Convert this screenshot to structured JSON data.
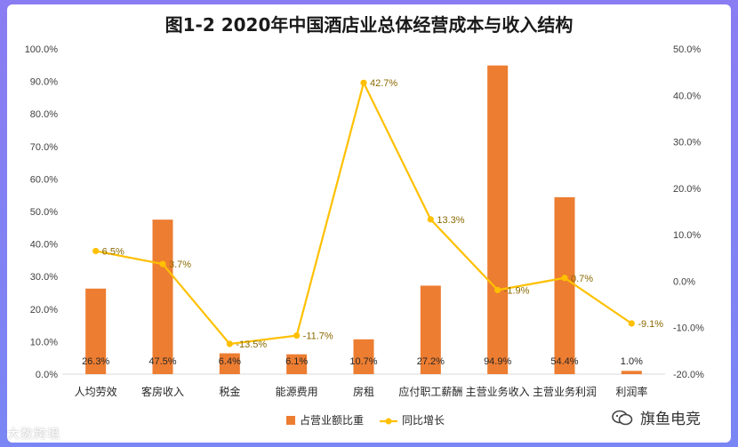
{
  "chart_data": {
    "type": "bar",
    "title": "图1-2 2020年中国酒店业总体经营成本与收入结构",
    "categories": [
      "人均劳效",
      "客房收入",
      "税金",
      "能源费用",
      "房租",
      "应付职工薪酬",
      "主营业务收入",
      "主营业务利润",
      "利润率"
    ],
    "series": [
      {
        "name": "占营业额比重",
        "type": "bar",
        "axis": "left",
        "color": "#ed7d31",
        "values": [
          26.3,
          47.5,
          6.4,
          6.1,
          10.7,
          27.2,
          94.9,
          54.4,
          1.0
        ],
        "labels": [
          "26.3%",
          "47.5%",
          "6.4%",
          "6.1%",
          "10.7%",
          "27.2%",
          "94.9%",
          "54.4%",
          "1.0%"
        ]
      },
      {
        "name": "同比增长",
        "type": "line",
        "axis": "right",
        "color": "#ffc000",
        "values": [
          6.5,
          3.7,
          -13.5,
          -11.7,
          42.7,
          13.3,
          -1.9,
          0.7,
          -9.1
        ],
        "labels": [
          "6.5%",
          "3.7%",
          "-13.5%",
          "-11.7%",
          "42.7%",
          "13.3%",
          "-1.9%",
          "0.7%",
          "-9.1%"
        ]
      }
    ],
    "ylim_left": [
      0,
      100
    ],
    "yticks_left": [
      "100.0%",
      "90.0%",
      "80.0%",
      "70.0%",
      "60.0%",
      "50.0%",
      "40.0%",
      "30.0%",
      "20.0%",
      "10.0%",
      "0.0%"
    ],
    "ylim_right": [
      -20,
      50
    ],
    "yticks_right": [
      "50.0%",
      "40.0%",
      "30.0%",
      "20.0%",
      "10.0%",
      "0.0%",
      "-10.0%",
      "-20.0%"
    ],
    "legend": [
      "占营业额比重",
      "同比增长"
    ],
    "legend_position": "bottom"
  },
  "watermark_left": "大数跨境",
  "watermark_right": "旗鱼电竞"
}
